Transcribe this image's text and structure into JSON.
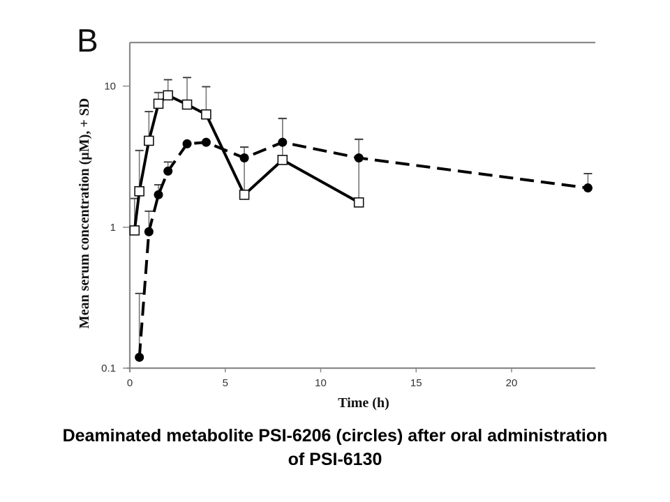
{
  "panel_label": "B",
  "caption": {
    "line1": "Deaminated metabolite PSI-6206 (circles) after oral administration",
    "line2": "of PSI-6130"
  },
  "chart_data": {
    "type": "line",
    "title": "",
    "xlabel": "Time (h)",
    "ylabel": "Mean serum concentration (µM), + SD",
    "yscale": "log",
    "xlim": [
      0,
      24.5
    ],
    "ylim": [
      0.1,
      20
    ],
    "xticks": [
      0,
      5,
      10,
      15,
      20
    ],
    "xtick_labels": [
      "0",
      "5",
      "10",
      "15",
      "20"
    ],
    "yticks": [
      0.1,
      1,
      10
    ],
    "ytick_labels": [
      "0.1",
      "1",
      "10"
    ],
    "grid": false,
    "legend": "none",
    "series": [
      {
        "name": "PSI-6130 (squares)",
        "marker": "open-square",
        "line_style": "solid",
        "x": [
          0.25,
          0.5,
          1,
          1.5,
          2,
          3,
          4,
          6,
          8,
          12
        ],
        "y": [
          0.95,
          1.8,
          4.1,
          7.5,
          8.6,
          7.4,
          6.3,
          1.7,
          3.0,
          1.5
        ],
        "sd_upper": [
          1.6,
          3.5,
          6.6,
          9.0,
          11.1,
          11.5,
          9.9,
          3.7,
          5.9,
          4.2
        ]
      },
      {
        "name": "PSI-6206 (circles)",
        "marker": "filled-circle",
        "line_style": "dashed",
        "x": [
          0.5,
          1,
          1.5,
          2,
          3,
          4,
          6,
          8,
          12,
          24
        ],
        "y": [
          0.12,
          0.93,
          1.7,
          2.5,
          3.9,
          4.0,
          3.1,
          4.0,
          3.1,
          1.9
        ],
        "sd_upper": [
          0.34,
          1.3,
          2.0,
          2.9,
          3.9,
          4.0,
          3.7,
          5.9,
          4.2,
          2.4
        ]
      }
    ]
  }
}
